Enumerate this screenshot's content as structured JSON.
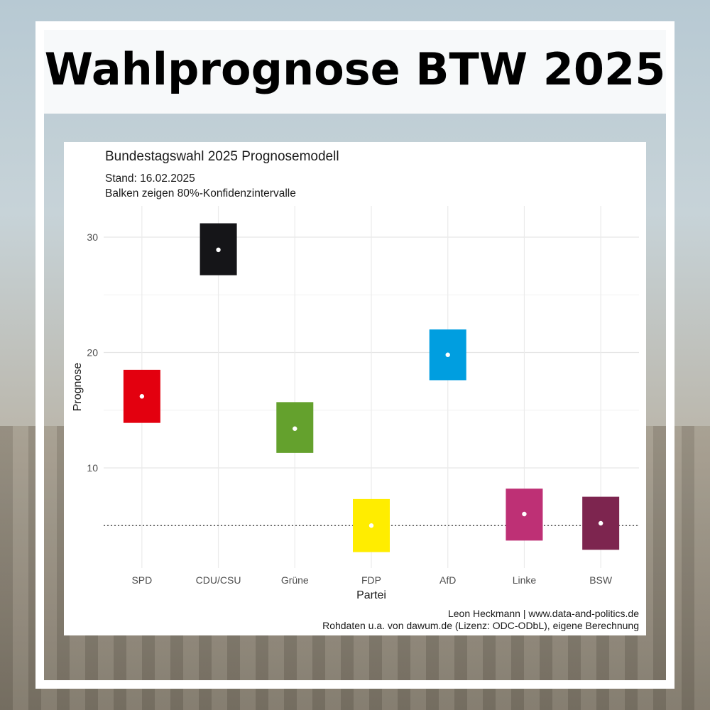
{
  "header": {
    "title": "Wahlprognose BTW 2025"
  },
  "chart_data": {
    "type": "range-bar",
    "title": "Bundestagswahl 2025 Prognosemodell",
    "subtitle_lines": [
      "Stand: 16.02.2025",
      "Balken zeigen 80%-Konfidenzintervalle"
    ],
    "xlabel": "Partei",
    "ylabel": "Prognose",
    "ylim": [
      0,
      32
    ],
    "yticks": [
      10,
      20,
      30
    ],
    "grid": true,
    "reference_line": 5,
    "categories": [
      "SPD",
      "CDU/CSU",
      "Grüne",
      "FDP",
      "AfD",
      "Linke",
      "BSW"
    ],
    "estimate": [
      16.2,
      28.9,
      13.4,
      5.0,
      19.8,
      6.0,
      5.2
    ],
    "lower": [
      13.9,
      26.7,
      11.3,
      2.7,
      17.6,
      3.7,
      2.9
    ],
    "upper": [
      18.5,
      31.2,
      15.7,
      7.3,
      22.0,
      8.2,
      7.5
    ],
    "colors": [
      "#e3000f",
      "#151518",
      "#64a12d",
      "#ffed00",
      "#009ee0",
      "#be3075",
      "#7d254f"
    ]
  },
  "captions": {
    "line1": "Leon Heckmann | www.data-and-politics.de",
    "line2": "Rohdaten u.a. von dawum.de (Lizenz: ODC-ODbL), eigene Berechnung"
  }
}
